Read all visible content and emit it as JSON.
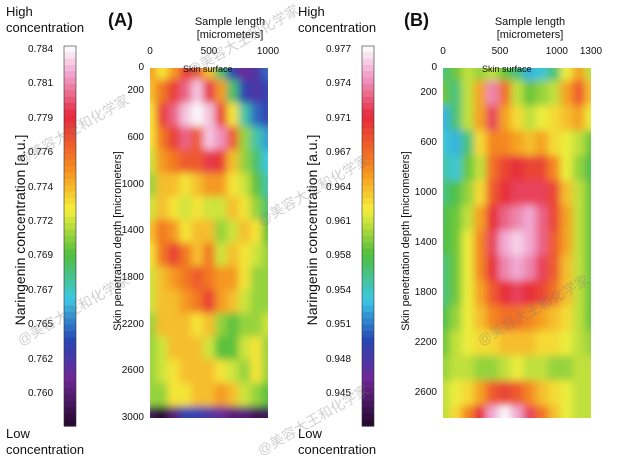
{
  "watermark": "@美容大王和化学家",
  "left_colorbar": {
    "high_label": [
      "High",
      "concentration"
    ],
    "low_label": [
      "Low",
      "concentration"
    ],
    "title": "Naringenin concentration [a.u.]",
    "ticks": [
      "0.784",
      "0.781",
      "0.779",
      "0.776",
      "0.774",
      "0.772",
      "0.769",
      "0.767",
      "0.765",
      "0.762",
      "0.760"
    ]
  },
  "right_colorbar": {
    "high_label": [
      "High",
      "concentration"
    ],
    "low_label": [
      "Low",
      "concentration"
    ],
    "title": "Naringenin concentration [a.u.]",
    "ticks": [
      "0.977",
      "0.974",
      "0.971",
      "0.967",
      "0.964",
      "0.961",
      "0.958",
      "0.954",
      "0.951",
      "0.948",
      "0.945"
    ]
  },
  "chart_data": [
    {
      "type": "heatmap",
      "panel_label": "(A)",
      "xlabel": [
        "Sample length",
        "[micrometers]"
      ],
      "ylabel": "Skin penetration depth [micrometers]",
      "x_ticks": [
        "0",
        "500",
        "1000"
      ],
      "y_ticks": [
        "0",
        "200",
        "600",
        "1000",
        "1400",
        "1800",
        "2200",
        "2600",
        "3000"
      ],
      "xlim": [
        0,
        1000
      ],
      "ylim": [
        0,
        3000
      ],
      "annotation": "Skin surface",
      "color_range": [
        0.76,
        0.784
      ],
      "grid_x": [
        0,
        100,
        200,
        300,
        400,
        500,
        600,
        700,
        800,
        900,
        1000
      ],
      "grid_y": [
        0,
        200,
        400,
        600,
        800,
        1000,
        1200,
        1400,
        1600,
        1800,
        2000,
        2200,
        2400,
        2600,
        2800,
        3000
      ],
      "z": [
        [
          0.776,
          0.774,
          0.776,
          0.779,
          0.778,
          0.775,
          0.77,
          0.765,
          0.763,
          0.764,
          0.766
        ],
        [
          0.775,
          0.777,
          0.779,
          0.781,
          0.783,
          0.78,
          0.776,
          0.77,
          0.765,
          0.764,
          0.765
        ],
        [
          0.774,
          0.779,
          0.781,
          0.783,
          0.784,
          0.783,
          0.779,
          0.774,
          0.769,
          0.766,
          0.765
        ],
        [
          0.774,
          0.777,
          0.779,
          0.781,
          0.778,
          0.783,
          0.782,
          0.778,
          0.772,
          0.769,
          0.767
        ],
        [
          0.773,
          0.776,
          0.777,
          0.778,
          0.778,
          0.78,
          0.779,
          0.775,
          0.772,
          0.77,
          0.768
        ],
        [
          0.772,
          0.775,
          0.775,
          0.774,
          0.775,
          0.776,
          0.776,
          0.774,
          0.773,
          0.771,
          0.769
        ],
        [
          0.773,
          0.775,
          0.774,
          0.773,
          0.774,
          0.773,
          0.773,
          0.775,
          0.774,
          0.772,
          0.77
        ],
        [
          0.775,
          0.777,
          0.776,
          0.774,
          0.775,
          0.775,
          0.772,
          0.773,
          0.775,
          0.774,
          0.771
        ],
        [
          0.774,
          0.777,
          0.779,
          0.777,
          0.775,
          0.777,
          0.773,
          0.775,
          0.774,
          0.773,
          0.772
        ],
        [
          0.773,
          0.775,
          0.776,
          0.777,
          0.778,
          0.777,
          0.776,
          0.776,
          0.774,
          0.772,
          0.772
        ],
        [
          0.773,
          0.775,
          0.775,
          0.776,
          0.777,
          0.779,
          0.776,
          0.775,
          0.773,
          0.772,
          0.772
        ],
        [
          0.772,
          0.775,
          0.775,
          0.775,
          0.774,
          0.775,
          0.772,
          0.771,
          0.772,
          0.772,
          0.773
        ],
        [
          0.772,
          0.773,
          0.775,
          0.775,
          0.775,
          0.773,
          0.771,
          0.771,
          0.773,
          0.774,
          0.772
        ],
        [
          0.772,
          0.773,
          0.774,
          0.775,
          0.775,
          0.775,
          0.774,
          0.773,
          0.772,
          0.774,
          0.772
        ],
        [
          0.772,
          0.772,
          0.774,
          0.774,
          0.775,
          0.775,
          0.776,
          0.775,
          0.773,
          0.772,
          0.771
        ],
        [
          0.761,
          0.76,
          0.762,
          0.765,
          0.765,
          0.764,
          0.763,
          0.762,
          0.762,
          0.761,
          0.761
        ]
      ]
    },
    {
      "type": "heatmap",
      "panel_label": "(B)",
      "xlabel": [
        "Sample length",
        "[micrometers]"
      ],
      "ylabel": "Skin penetration depth [micrometers]",
      "x_ticks": [
        "0",
        "500",
        "1000",
        "1300"
      ],
      "y_ticks": [
        "0",
        "200",
        "600",
        "1000",
        "1400",
        "1800",
        "2200",
        "2600"
      ],
      "xlim": [
        0,
        1300
      ],
      "ylim": [
        0,
        2800
      ],
      "annotation": "Skin surface",
      "color_range": [
        0.945,
        0.977
      ],
      "grid_x": [
        0,
        100,
        200,
        300,
        400,
        500,
        600,
        700,
        800,
        900,
        1000,
        1100,
        1200
      ],
      "grid_y": [
        0,
        200,
        400,
        600,
        800,
        1000,
        1200,
        1400,
        1600,
        1800,
        2000,
        2200,
        2400,
        2600,
        2800
      ],
      "z": [
        [
          0.958,
          0.96,
          0.962,
          0.961,
          0.962,
          0.96,
          0.958,
          0.955,
          0.956,
          0.958,
          0.963,
          0.966,
          0.962
        ],
        [
          0.96,
          0.958,
          0.962,
          0.966,
          0.974,
          0.968,
          0.962,
          0.96,
          0.961,
          0.962,
          0.966,
          0.969,
          0.965
        ],
        [
          0.955,
          0.958,
          0.962,
          0.966,
          0.972,
          0.966,
          0.964,
          0.962,
          0.963,
          0.964,
          0.965,
          0.966,
          0.963
        ],
        [
          0.956,
          0.955,
          0.958,
          0.964,
          0.967,
          0.967,
          0.966,
          0.965,
          0.966,
          0.964,
          0.963,
          0.962,
          0.96
        ],
        [
          0.957,
          0.956,
          0.96,
          0.962,
          0.968,
          0.97,
          0.971,
          0.97,
          0.97,
          0.967,
          0.963,
          0.961,
          0.959
        ],
        [
          0.958,
          0.959,
          0.961,
          0.964,
          0.969,
          0.971,
          0.972,
          0.972,
          0.972,
          0.97,
          0.965,
          0.962,
          0.96
        ],
        [
          0.959,
          0.96,
          0.962,
          0.966,
          0.971,
          0.973,
          0.974,
          0.975,
          0.973,
          0.97,
          0.966,
          0.962,
          0.96
        ],
        [
          0.959,
          0.96,
          0.963,
          0.967,
          0.972,
          0.975,
          0.976,
          0.975,
          0.973,
          0.969,
          0.966,
          0.962,
          0.96
        ],
        [
          0.958,
          0.96,
          0.963,
          0.967,
          0.971,
          0.974,
          0.975,
          0.974,
          0.972,
          0.969,
          0.965,
          0.962,
          0.96
        ],
        [
          0.958,
          0.96,
          0.963,
          0.966,
          0.969,
          0.971,
          0.972,
          0.971,
          0.97,
          0.968,
          0.965,
          0.962,
          0.96
        ],
        [
          0.959,
          0.961,
          0.963,
          0.965,
          0.967,
          0.968,
          0.968,
          0.967,
          0.966,
          0.965,
          0.964,
          0.962,
          0.96
        ],
        [
          0.96,
          0.962,
          0.963,
          0.964,
          0.964,
          0.965,
          0.965,
          0.965,
          0.964,
          0.964,
          0.963,
          0.962,
          0.961
        ],
        [
          0.961,
          0.962,
          0.962,
          0.961,
          0.961,
          0.962,
          0.963,
          0.962,
          0.962,
          0.961,
          0.961,
          0.962,
          0.962
        ],
        [
          0.962,
          0.963,
          0.964,
          0.966,
          0.969,
          0.97,
          0.969,
          0.967,
          0.965,
          0.964,
          0.963,
          0.962,
          0.962
        ],
        [
          0.962,
          0.964,
          0.967,
          0.971,
          0.975,
          0.977,
          0.975,
          0.972,
          0.968,
          0.965,
          0.963,
          0.962,
          0.962
        ]
      ]
    }
  ]
}
